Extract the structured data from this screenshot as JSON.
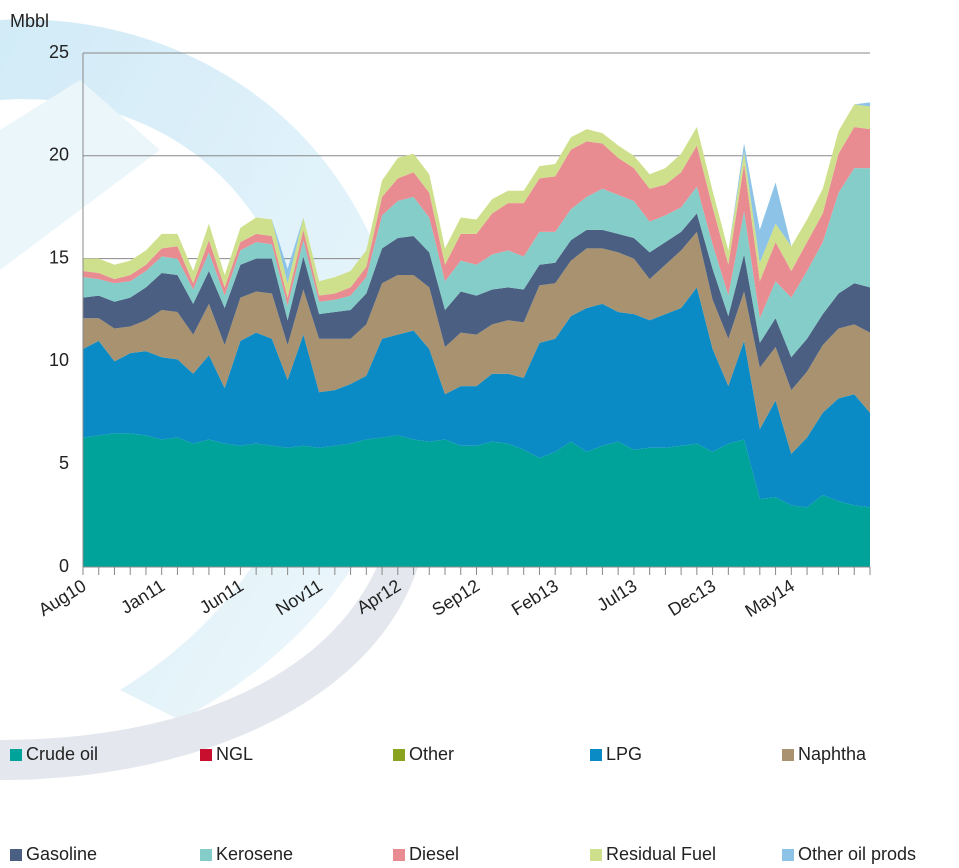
{
  "chart_data": {
    "type": "stacked-area",
    "y_label": "Mbbl",
    "categories": [
      "Aug10",
      null,
      null,
      null,
      null,
      "Jan11",
      null,
      null,
      null,
      null,
      "Jun11",
      null,
      null,
      null,
      null,
      "Nov11",
      null,
      null,
      null,
      null,
      "Apr12",
      null,
      null,
      null,
      null,
      "Sep12",
      null,
      null,
      null,
      null,
      "Feb13",
      null,
      null,
      null,
      null,
      "Jul13",
      null,
      null,
      null,
      null,
      "Dec13",
      null,
      null,
      null,
      null,
      "May14",
      null,
      null,
      null,
      null,
      null
    ],
    "ylim": [
      0,
      25
    ],
    "yticks": [
      0,
      5,
      10,
      15,
      20,
      25
    ],
    "grid": true,
    "legend": "bottom",
    "series": [
      {
        "name": "Crude oil",
        "color": "#00a39a",
        "values": [
          6.3,
          6.4,
          6.5,
          6.5,
          6.4,
          6.2,
          6.3,
          6.0,
          6.2,
          6.0,
          5.9,
          6.0,
          5.9,
          5.8,
          5.9,
          5.8,
          5.9,
          6.0,
          6.2,
          6.3,
          6.4,
          6.2,
          6.1,
          6.2,
          5.9,
          5.9,
          6.1,
          6.0,
          5.7,
          5.3,
          5.6,
          6.1,
          5.6,
          5.9,
          6.1,
          5.7,
          5.8,
          5.8,
          5.9,
          6.0,
          5.6,
          6.0,
          6.2,
          3.3,
          3.4,
          3.0,
          2.9,
          3.5,
          3.2,
          3.0,
          2.9
        ]
      },
      {
        "name": "NGL",
        "color": "#c8102e",
        "values": [
          0,
          0,
          0,
          0,
          0,
          0,
          0,
          0,
          0,
          0,
          0,
          0,
          0,
          0,
          0,
          0,
          0,
          0,
          0,
          0,
          0,
          0,
          0,
          0,
          0,
          0,
          0,
          0,
          0,
          0,
          0,
          0,
          0,
          0,
          0,
          0,
          0,
          0,
          0,
          0,
          0,
          0,
          0,
          0,
          0,
          0,
          0,
          0,
          0,
          0,
          0
        ]
      },
      {
        "name": "Other",
        "color": "#8aa31e",
        "values": [
          0,
          0,
          0,
          0,
          0,
          0,
          0,
          0,
          0,
          0,
          0,
          0,
          0,
          0,
          0,
          0,
          0,
          0,
          0,
          0,
          0,
          0,
          0,
          0,
          0,
          0,
          0,
          0,
          0,
          0,
          0,
          0,
          0,
          0,
          0,
          0,
          0,
          0,
          0,
          0,
          0,
          0,
          0,
          0,
          0,
          0,
          0,
          0,
          0,
          0,
          0
        ]
      },
      {
        "name": "LPG",
        "color": "#0a8bc6",
        "values": [
          4.3,
          4.6,
          3.5,
          3.9,
          4.1,
          4.0,
          3.8,
          3.4,
          4.1,
          2.7,
          5.1,
          5.4,
          5.2,
          3.3,
          5.4,
          2.7,
          2.7,
          2.9,
          3.1,
          4.8,
          4.9,
          5.3,
          4.5,
          2.2,
          2.9,
          2.9,
          3.3,
          3.4,
          3.5,
          5.6,
          5.5,
          6.1,
          7.0,
          6.9,
          6.3,
          6.6,
          6.2,
          6.5,
          6.7,
          7.6,
          5.0,
          2.8,
          4.8,
          3.4,
          4.7,
          2.5,
          3.4,
          4.0,
          5.0,
          5.4,
          4.6
        ]
      },
      {
        "name": "Naphtha",
        "color": "#a8926f",
        "values": [
          1.5,
          1.1,
          1.6,
          1.3,
          1.5,
          2.3,
          2.3,
          1.9,
          2.5,
          2.1,
          2.1,
          2.0,
          2.2,
          1.7,
          2.2,
          2.6,
          2.5,
          2.2,
          2.5,
          2.7,
          2.9,
          2.7,
          3.0,
          2.3,
          2.6,
          2.5,
          2.4,
          2.6,
          2.7,
          2.8,
          2.7,
          2.7,
          2.9,
          2.7,
          2.9,
          2.7,
          2.0,
          2.4,
          2.8,
          2.7,
          2.4,
          2.3,
          2.4,
          3.0,
          2.6,
          3.1,
          3.2,
          3.3,
          3.4,
          3.4,
          3.9
        ]
      },
      {
        "name": "Gasoline",
        "color": "#4a5f82",
        "values": [
          1.0,
          1.1,
          1.3,
          1.4,
          1.6,
          1.8,
          1.8,
          1.5,
          1.6,
          1.8,
          1.6,
          1.6,
          1.7,
          1.2,
          1.6,
          1.2,
          1.3,
          1.4,
          1.5,
          1.7,
          1.8,
          1.9,
          1.7,
          1.8,
          2.0,
          1.9,
          1.7,
          1.6,
          1.6,
          1.0,
          1.0,
          1.0,
          0.9,
          0.9,
          0.9,
          1.0,
          1.3,
          1.1,
          0.9,
          0.9,
          1.5,
          1.1,
          1.8,
          1.2,
          1.4,
          1.6,
          1.6,
          1.5,
          1.7,
          2.0,
          2.2
        ]
      },
      {
        "name": "Kerosene",
        "color": "#84cdc8",
        "values": [
          1.0,
          0.8,
          0.9,
          0.8,
          0.8,
          0.8,
          0.8,
          0.7,
          0.9,
          0.6,
          0.7,
          0.8,
          0.7,
          0.7,
          0.8,
          0.6,
          0.6,
          0.7,
          0.8,
          1.6,
          1.8,
          1.9,
          1.7,
          1.4,
          1.5,
          1.5,
          1.7,
          1.8,
          1.6,
          1.6,
          1.5,
          1.5,
          1.6,
          2.0,
          1.9,
          1.8,
          1.5,
          1.3,
          1.2,
          1.3,
          1.2,
          1.0,
          2.1,
          1.2,
          1.8,
          2.9,
          3.3,
          3.5,
          4.9,
          5.6,
          5.8
        ]
      },
      {
        "name": "Diesel",
        "color": "#e98c92",
        "values": [
          0.3,
          0.3,
          0.2,
          0.3,
          0.3,
          0.4,
          0.6,
          0.3,
          0.6,
          0.4,
          0.4,
          0.4,
          0.4,
          0.4,
          0.5,
          0.3,
          0.3,
          0.4,
          0.5,
          0.9,
          1.1,
          1.2,
          1.2,
          0.8,
          1.3,
          1.5,
          2.0,
          2.3,
          2.6,
          2.6,
          2.7,
          2.9,
          2.7,
          2.2,
          1.8,
          1.6,
          1.6,
          1.5,
          1.7,
          2.0,
          1.8,
          1.5,
          2.3,
          1.8,
          1.9,
          1.3,
          1.4,
          1.4,
          1.9,
          2.0,
          1.9
        ]
      },
      {
        "name": "Residual Fuel",
        "color": "#cfe08c",
        "values": [
          0.6,
          0.7,
          0.7,
          0.7,
          0.7,
          0.7,
          0.6,
          0.6,
          0.8,
          0.6,
          0.7,
          0.8,
          0.8,
          0.7,
          0.6,
          0.7,
          0.8,
          0.8,
          0.8,
          0.8,
          1.0,
          0.9,
          0.9,
          0.8,
          0.8,
          0.7,
          0.7,
          0.6,
          0.6,
          0.6,
          0.6,
          0.6,
          0.6,
          0.5,
          0.6,
          0.6,
          0.7,
          0.8,
          0.9,
          0.9,
          0.8,
          0.7,
          0.6,
          0.9,
          0.9,
          1.2,
          1.1,
          1.2,
          1.1,
          1.1,
          1.1
        ]
      },
      {
        "name": "Other oil prods",
        "color": "#8cc3e6",
        "values": [
          0,
          0,
          0,
          0,
          0,
          0,
          0,
          0,
          0,
          0,
          0,
          0,
          0,
          0.7,
          0,
          0,
          0,
          0,
          0,
          0,
          0,
          0,
          0,
          0,
          0,
          0,
          0,
          0,
          0,
          0,
          0,
          0,
          0,
          0,
          0,
          0,
          0,
          0,
          0,
          0,
          0,
          0,
          0.4,
          1.6,
          2.0,
          0,
          0,
          0,
          0,
          0,
          0.2
        ]
      }
    ]
  }
}
